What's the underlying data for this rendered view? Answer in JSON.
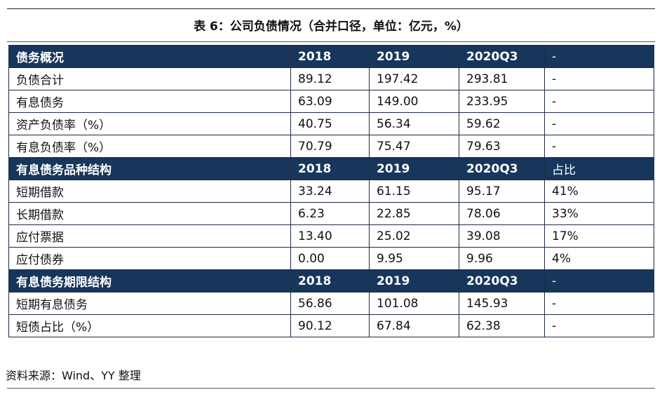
{
  "title": "表 6：公司负债情况（合并口径，单位：亿元，%）",
  "sections": [
    {
      "header": [
        "债务概况",
        "2018",
        "2019",
        "2020Q3",
        "-"
      ],
      "rows": [
        [
          "负债合计",
          "89.12",
          "197.42",
          "293.81",
          "-"
        ],
        [
          "有息债务",
          "63.09",
          "149.00",
          "233.95",
          "-"
        ],
        [
          "资产负债率（%）",
          "40.75",
          "56.34",
          "59.62",
          "-"
        ],
        [
          "有息负债率（%）",
          "70.79",
          "75.47",
          "79.63",
          "-"
        ]
      ]
    },
    {
      "header": [
        "有息债务品种结构",
        "2018",
        "2019",
        "2020Q3",
        "占比"
      ],
      "rows": [
        [
          "短期借款",
          "33.24",
          "61.15",
          "95.17",
          "41%"
        ],
        [
          "长期借款",
          "6.23",
          "22.85",
          "78.06",
          "33%"
        ],
        [
          "应付票据",
          "13.40",
          "25.02",
          "39.08",
          "17%"
        ],
        [
          "应付债券",
          "0.00",
          "9.95",
          "9.96",
          "4%"
        ]
      ]
    },
    {
      "header": [
        "有息债务期限结构",
        "2018",
        "2019",
        "2020Q3",
        "-"
      ],
      "rows": [
        [
          "短期有息债务",
          "56.86",
          "101.08",
          "145.93",
          "-"
        ],
        [
          "短债占比（%）",
          "90.12",
          "67.84",
          "62.38",
          "-"
        ]
      ]
    }
  ],
  "source": "资料来源：Wind、YY 整理",
  "colors": {
    "header_bg": "#16375b",
    "header_text": "#ffffff",
    "border": "#1b2b45"
  }
}
